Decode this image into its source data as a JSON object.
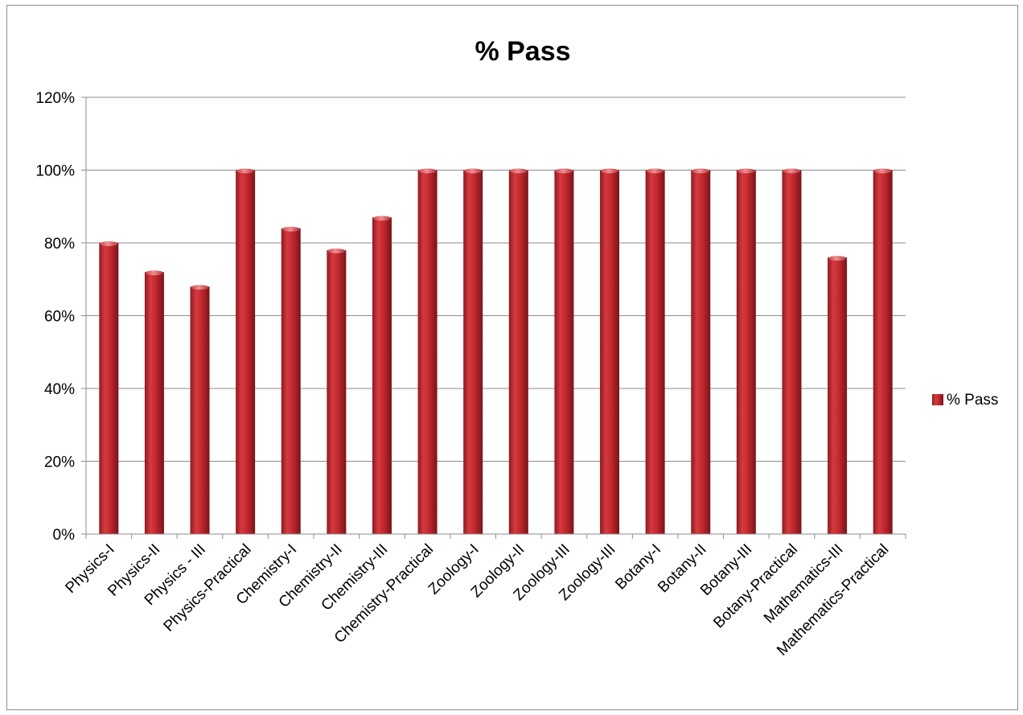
{
  "chart_data": {
    "type": "bar",
    "title": "% Pass",
    "xlabel": "",
    "ylabel": "",
    "ylim": [
      0,
      120
    ],
    "yticks": [
      "0%",
      "20%",
      "40%",
      "60%",
      "80%",
      "100%",
      "120%"
    ],
    "grid": true,
    "legend_position": "right",
    "categories": [
      "Physics-I",
      "Physics-II",
      "Physics - III",
      "Physics-Practical",
      "Chemistry-I",
      "Chemistry-II",
      "Chemistry-III",
      "Chemistry-Practical",
      "Zoology-I",
      "Zoology-II",
      "Zoology-III",
      "Zoology-III",
      "Botany-I",
      "Botany-II",
      "Botany-III",
      "Botany-Practical",
      "Mathematics-III",
      "Mathematics-Practical"
    ],
    "series": [
      {
        "name": "% Pass",
        "color": "#c0272d",
        "values": [
          80,
          72,
          68,
          100,
          84,
          78,
          87,
          100,
          100,
          100,
          100,
          100,
          100,
          100,
          100,
          100,
          76,
          100
        ]
      }
    ]
  }
}
